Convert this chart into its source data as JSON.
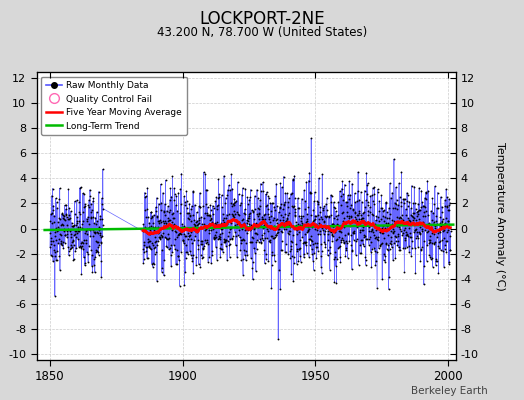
{
  "title": "LOCKPORT-2NE",
  "subtitle": "43.200 N, 78.700 W (United States)",
  "ylabel": "Temperature Anomaly (°C)",
  "watermark": "Berkeley Earth",
  "xlim": [
    1845,
    2003
  ],
  "ylim": [
    -10.5,
    12.5
  ],
  "yticks": [
    -10,
    -8,
    -6,
    -4,
    -2,
    0,
    2,
    4,
    6,
    8,
    10,
    12
  ],
  "xticks": [
    1850,
    1900,
    1950,
    2000
  ],
  "raw_color": "#5555ff",
  "raw_dot_color": "#000000",
  "moving_avg_color": "#ff0000",
  "trend_color": "#00bb00",
  "qc_color": "#ff69b4",
  "background_color": "#d8d8d8",
  "plot_bg_color": "#ffffff",
  "seed": 42,
  "sparse_start": 1850,
  "sparse_end": 1870,
  "sparse_n": 240,
  "gap_start": 1870,
  "gap_end": 1885,
  "dense_start": 1885,
  "dense_end": 2001,
  "dense_n": 1392
}
